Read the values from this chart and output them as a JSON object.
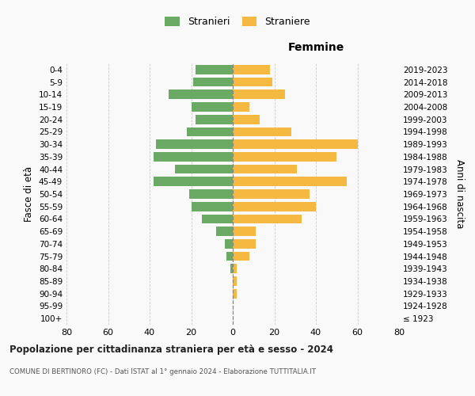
{
  "age_groups": [
    "100+",
    "95-99",
    "90-94",
    "85-89",
    "80-84",
    "75-79",
    "70-74",
    "65-69",
    "60-64",
    "55-59",
    "50-54",
    "45-49",
    "40-44",
    "35-39",
    "30-34",
    "25-29",
    "20-24",
    "15-19",
    "10-14",
    "5-9",
    "0-4"
  ],
  "birth_years": [
    "≤ 1923",
    "1924-1928",
    "1929-1933",
    "1934-1938",
    "1939-1943",
    "1944-1948",
    "1949-1953",
    "1954-1958",
    "1959-1963",
    "1964-1968",
    "1969-1973",
    "1974-1978",
    "1979-1983",
    "1984-1988",
    "1989-1993",
    "1994-1998",
    "1999-2003",
    "2004-2008",
    "2009-2013",
    "2014-2018",
    "2019-2023"
  ],
  "males": [
    0,
    0,
    0,
    0,
    1,
    3,
    4,
    8,
    15,
    20,
    21,
    38,
    28,
    38,
    37,
    22,
    18,
    20,
    31,
    19,
    18
  ],
  "females": [
    0,
    0,
    2,
    2,
    2,
    8,
    11,
    11,
    33,
    40,
    37,
    55,
    31,
    50,
    60,
    28,
    13,
    8,
    25,
    19,
    18
  ],
  "male_color": "#6aaa64",
  "female_color": "#f5b942",
  "background_color": "#f9f9f9",
  "grid_color": "#cccccc",
  "title": "Popolazione per cittadinanza straniera per età e sesso - 2024",
  "subtitle": "COMUNE DI BERTINORO (FC) - Dati ISTAT al 1° gennaio 2024 - Elaborazione TUTTITALIA.IT",
  "xlabel_right": "Femmine",
  "ylabel_left": "Fasce di età",
  "ylabel_right": "Anni di nascita",
  "legend_males": "Stranieri",
  "legend_females": "Straniere",
  "xlim": 80,
  "tick_step": 20
}
